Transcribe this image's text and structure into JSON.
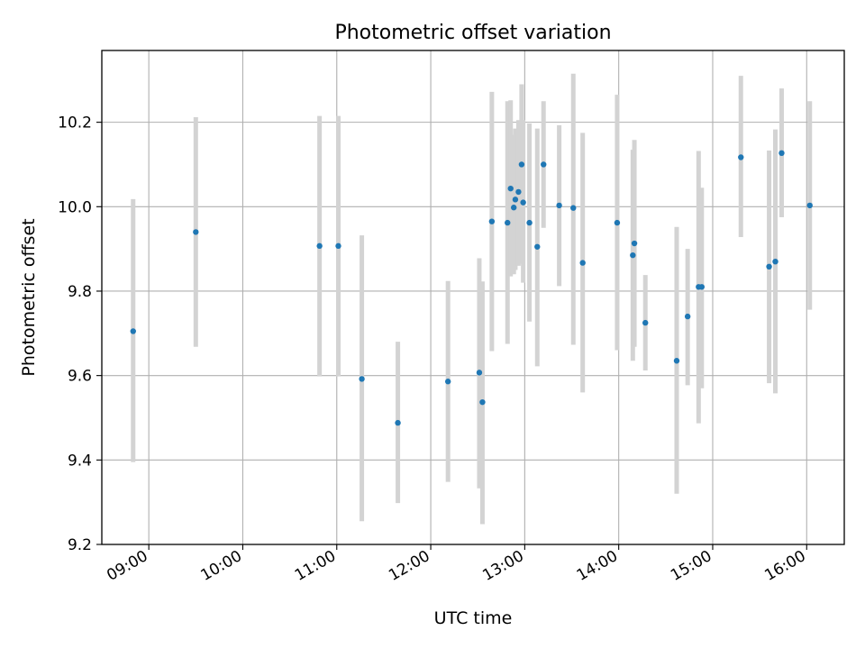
{
  "chart_data": {
    "type": "scatter",
    "title": "Photometric offset variation",
    "xlabel": "UTC time",
    "ylabel": "Photometric offset",
    "x_axis": "time (HH:MM)",
    "xlim": [
      "08:30",
      "16:24"
    ],
    "ylim": [
      9.2,
      10.37
    ],
    "xticks": [
      "09:00",
      "10:00",
      "11:00",
      "12:00",
      "13:00",
      "14:00",
      "15:00",
      "16:00"
    ],
    "yticks": [
      "9.2",
      "9.4",
      "9.6",
      "9.8",
      "10.0",
      "10.2"
    ],
    "grid": true,
    "colors": {
      "marker": "#1f77b4",
      "errorbar": "#d3d3d3",
      "grid": "#b0b0b0"
    },
    "points": [
      {
        "x": "08:50",
        "y": 9.705,
        "yerr_low": 9.395,
        "yerr_high": 10.018
      },
      {
        "x": "09:30",
        "y": 9.94,
        "yerr_low": 9.668,
        "yerr_high": 10.212
      },
      {
        "x": "10:49",
        "y": 9.907,
        "yerr_low": 9.598,
        "yerr_high": 10.215
      },
      {
        "x": "11:01",
        "y": 9.907,
        "yerr_low": 9.598,
        "yerr_high": 10.215
      },
      {
        "x": "11:16",
        "y": 9.592,
        "yerr_low": 9.255,
        "yerr_high": 9.932
      },
      {
        "x": "11:39",
        "y": 9.488,
        "yerr_low": 9.298,
        "yerr_high": 9.68
      },
      {
        "x": "12:11",
        "y": 9.586,
        "yerr_low": 9.348,
        "yerr_high": 9.824
      },
      {
        "x": "12:31",
        "y": 9.607,
        "yerr_low": 9.333,
        "yerr_high": 9.878
      },
      {
        "x": "12:33",
        "y": 9.537,
        "yerr_low": 9.248,
        "yerr_high": 9.823
      },
      {
        "x": "12:39",
        "y": 9.965,
        "yerr_low": 9.658,
        "yerr_high": 10.272
      },
      {
        "x": "12:49",
        "y": 9.962,
        "yerr_low": 9.675,
        "yerr_high": 10.25
      },
      {
        "x": "12:51",
        "y": 10.043,
        "yerr_low": 9.835,
        "yerr_high": 10.252
      },
      {
        "x": "12:53",
        "y": 9.998,
        "yerr_low": 9.84,
        "yerr_high": 10.17
      },
      {
        "x": "12:54",
        "y": 10.017,
        "yerr_low": 9.85,
        "yerr_high": 10.185
      },
      {
        "x": "12:56",
        "y": 10.035,
        "yerr_low": 9.86,
        "yerr_high": 10.205
      },
      {
        "x": "12:58",
        "y": 10.1,
        "yerr_low": 9.865,
        "yerr_high": 10.29
      },
      {
        "x": "12:59",
        "y": 10.01,
        "yerr_low": 9.82,
        "yerr_high": 10.205
      },
      {
        "x": "13:03",
        "y": 9.962,
        "yerr_low": 9.728,
        "yerr_high": 10.197
      },
      {
        "x": "13:08",
        "y": 9.905,
        "yerr_low": 9.622,
        "yerr_high": 10.185
      },
      {
        "x": "13:12",
        "y": 10.1,
        "yerr_low": 9.95,
        "yerr_high": 10.25
      },
      {
        "x": "13:22",
        "y": 10.003,
        "yerr_low": 9.812,
        "yerr_high": 10.193
      },
      {
        "x": "13:31",
        "y": 9.997,
        "yerr_low": 9.673,
        "yerr_high": 10.315
      },
      {
        "x": "13:37",
        "y": 9.867,
        "yerr_low": 9.56,
        "yerr_high": 10.175
      },
      {
        "x": "13:59",
        "y": 9.962,
        "yerr_low": 9.66,
        "yerr_high": 10.265
      },
      {
        "x": "14:09",
        "y": 9.885,
        "yerr_low": 9.635,
        "yerr_high": 10.135
      },
      {
        "x": "14:10",
        "y": 9.913,
        "yerr_low": 9.668,
        "yerr_high": 10.158
      },
      {
        "x": "14:17",
        "y": 9.725,
        "yerr_low": 9.612,
        "yerr_high": 9.838
      },
      {
        "x": "14:37",
        "y": 9.635,
        "yerr_low": 9.32,
        "yerr_high": 9.952
      },
      {
        "x": "14:44",
        "y": 9.74,
        "yerr_low": 9.577,
        "yerr_high": 9.9
      },
      {
        "x": "14:51",
        "y": 9.81,
        "yerr_low": 9.487,
        "yerr_high": 10.132
      },
      {
        "x": "14:53",
        "y": 9.81,
        "yerr_low": 9.57,
        "yerr_high": 10.045
      },
      {
        "x": "15:18",
        "y": 10.117,
        "yerr_low": 9.928,
        "yerr_high": 10.31
      },
      {
        "x": "15:36",
        "y": 9.858,
        "yerr_low": 9.582,
        "yerr_high": 10.133
      },
      {
        "x": "15:40",
        "y": 9.87,
        "yerr_low": 9.558,
        "yerr_high": 10.183
      },
      {
        "x": "15:44",
        "y": 10.127,
        "yerr_low": 9.975,
        "yerr_high": 10.28
      },
      {
        "x": "16:02",
        "y": 10.003,
        "yerr_low": 9.756,
        "yerr_high": 10.25
      }
    ]
  }
}
